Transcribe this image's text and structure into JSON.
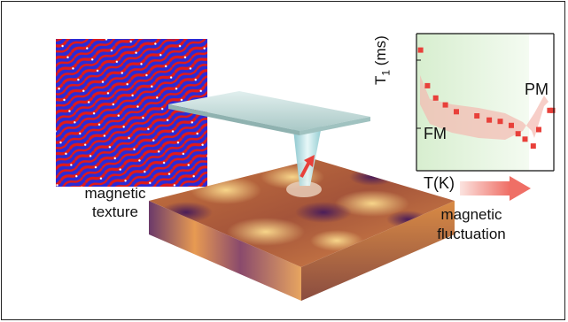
{
  "labels": {
    "texture_line1": "magnetic",
    "texture_line2": "texture",
    "fluct_line1": "magnetic",
    "fluct_line2": "fluctuation",
    "x_axis": "T(K)",
    "y_axis_main": "T",
    "y_axis_sub": "1",
    "y_axis_unit": " (ms)",
    "fm": "FM",
    "pm": "PM"
  },
  "colors": {
    "texture_blue": "#2b2bd6",
    "texture_red": "#e01a1a",
    "cantilever": "#b8d6d4",
    "tip": "#bfe4e8",
    "data_point": "#e8403a",
    "band": "#f4b9b0",
    "arrow": "#f0807a",
    "green_bg": "#e8f5e2"
  },
  "icons": [
    "magnetic-texture-image",
    "cantilever-icon",
    "probe-tip-icon",
    "spin-arrow-icon",
    "sample-slab-icon",
    "arrow-right-icon"
  ],
  "chart_data": {
    "type": "scatter",
    "xlabel": "T(K)",
    "ylabel": "T1 (ms)",
    "points_relative": [
      [
        0.03,
        0.88
      ],
      [
        0.08,
        0.62
      ],
      [
        0.14,
        0.53
      ],
      [
        0.21,
        0.48
      ],
      [
        0.29,
        0.43
      ],
      [
        0.44,
        0.4
      ],
      [
        0.53,
        0.37
      ],
      [
        0.61,
        0.36
      ],
      [
        0.69,
        0.33
      ],
      [
        0.74,
        0.27
      ],
      [
        0.79,
        0.23
      ],
      [
        0.85,
        0.18
      ],
      [
        0.89,
        0.3
      ],
      [
        0.97,
        0.44
      ],
      [
        0.99,
        0.44
      ]
    ]
  }
}
